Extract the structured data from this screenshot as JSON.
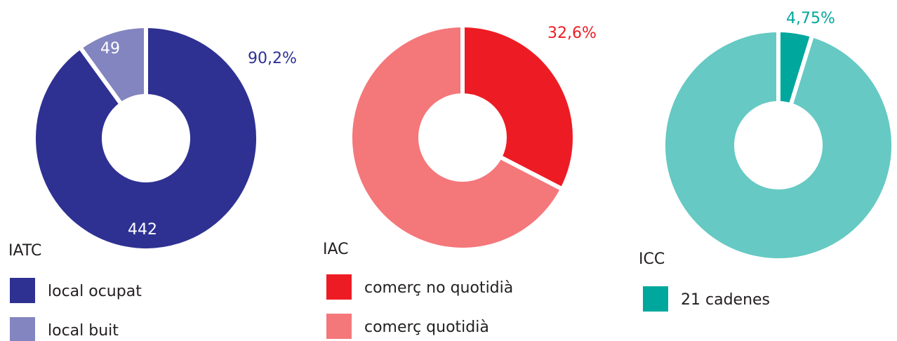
{
  "chart_data": [
    {
      "type": "pie",
      "title": "IATC",
      "categories": [
        "local ocupat",
        "local buit"
      ],
      "values": [
        442,
        49
      ],
      "value_labels": [
        "442",
        "49"
      ],
      "colors": [
        "#2e3192",
        "#8385c0"
      ],
      "annotation": "90,2%"
    },
    {
      "type": "pie",
      "title": "IAC",
      "categories": [
        "comerç no quotidià",
        "comerç quotidià"
      ],
      "values": [
        32.6,
        67.4
      ],
      "value_labels": [
        "32,6%",
        null
      ],
      "colors": [
        "#ed1c24",
        "#f4777a"
      ]
    },
    {
      "type": "pie",
      "title": "ICC",
      "categories": [
        "21 cadenes",
        null
      ],
      "values": [
        4.75,
        95.25
      ],
      "value_labels": [
        "4,75%",
        null
      ],
      "colors": [
        "#00a79d",
        "#66c9c3"
      ]
    }
  ]
}
